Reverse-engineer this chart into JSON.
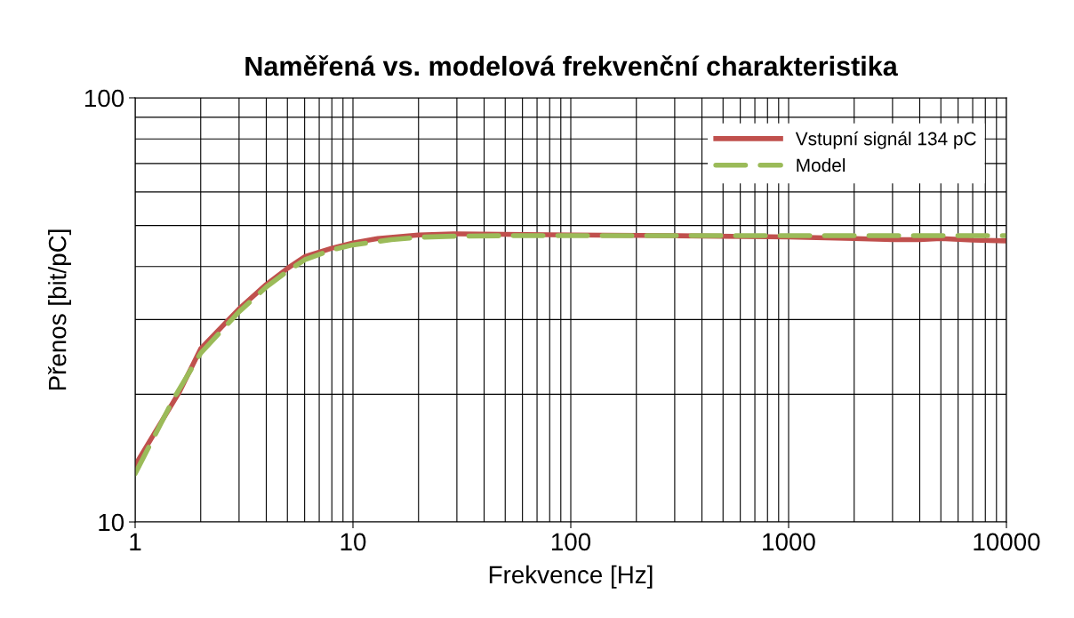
{
  "chart_data": {
    "type": "line",
    "title": "Naměřená vs. modelová frekvenční charakteristika",
    "xlabel": "Frekvence [Hz]",
    "ylabel": "Přenos [bit/pC]",
    "log": "xy",
    "xlim": [
      1,
      10000
    ],
    "ylim": [
      10,
      100
    ],
    "xticks": [
      1,
      10,
      100,
      1000,
      10000
    ],
    "yticks": [
      10,
      100
    ],
    "grid": true,
    "legend": "top right",
    "series": [
      {
        "name": "Vstupní signál 134 pC",
        "color": "#c0504d",
        "line_style": "solid",
        "x": [
          1,
          1.6,
          2,
          3,
          4,
          5,
          6,
          8,
          10,
          13,
          20,
          30,
          100,
          300,
          1000,
          2000,
          3000,
          4000,
          5000,
          7000,
          10000
        ],
        "values": [
          13.6,
          20.3,
          25.6,
          31.8,
          36.3,
          39.6,
          42.2,
          44.2,
          45.5,
          46.6,
          47.5,
          47.8,
          47.5,
          47.3,
          47.0,
          46.6,
          46.3,
          46.3,
          46.6,
          46.2,
          46.0
        ]
      },
      {
        "name": "Model",
        "color": "#9bbb59",
        "line_style": "dashed",
        "x": [
          1,
          1.5,
          2,
          3,
          4,
          5,
          6,
          8,
          10,
          15,
          20,
          30,
          50,
          100,
          1000,
          10000
        ],
        "values": [
          13.0,
          19.5,
          25.0,
          31.3,
          35.8,
          39.0,
          41.5,
          43.8,
          45.0,
          46.3,
          46.9,
          47.2,
          47.3,
          47.3,
          47.3,
          47.3
        ]
      }
    ]
  }
}
